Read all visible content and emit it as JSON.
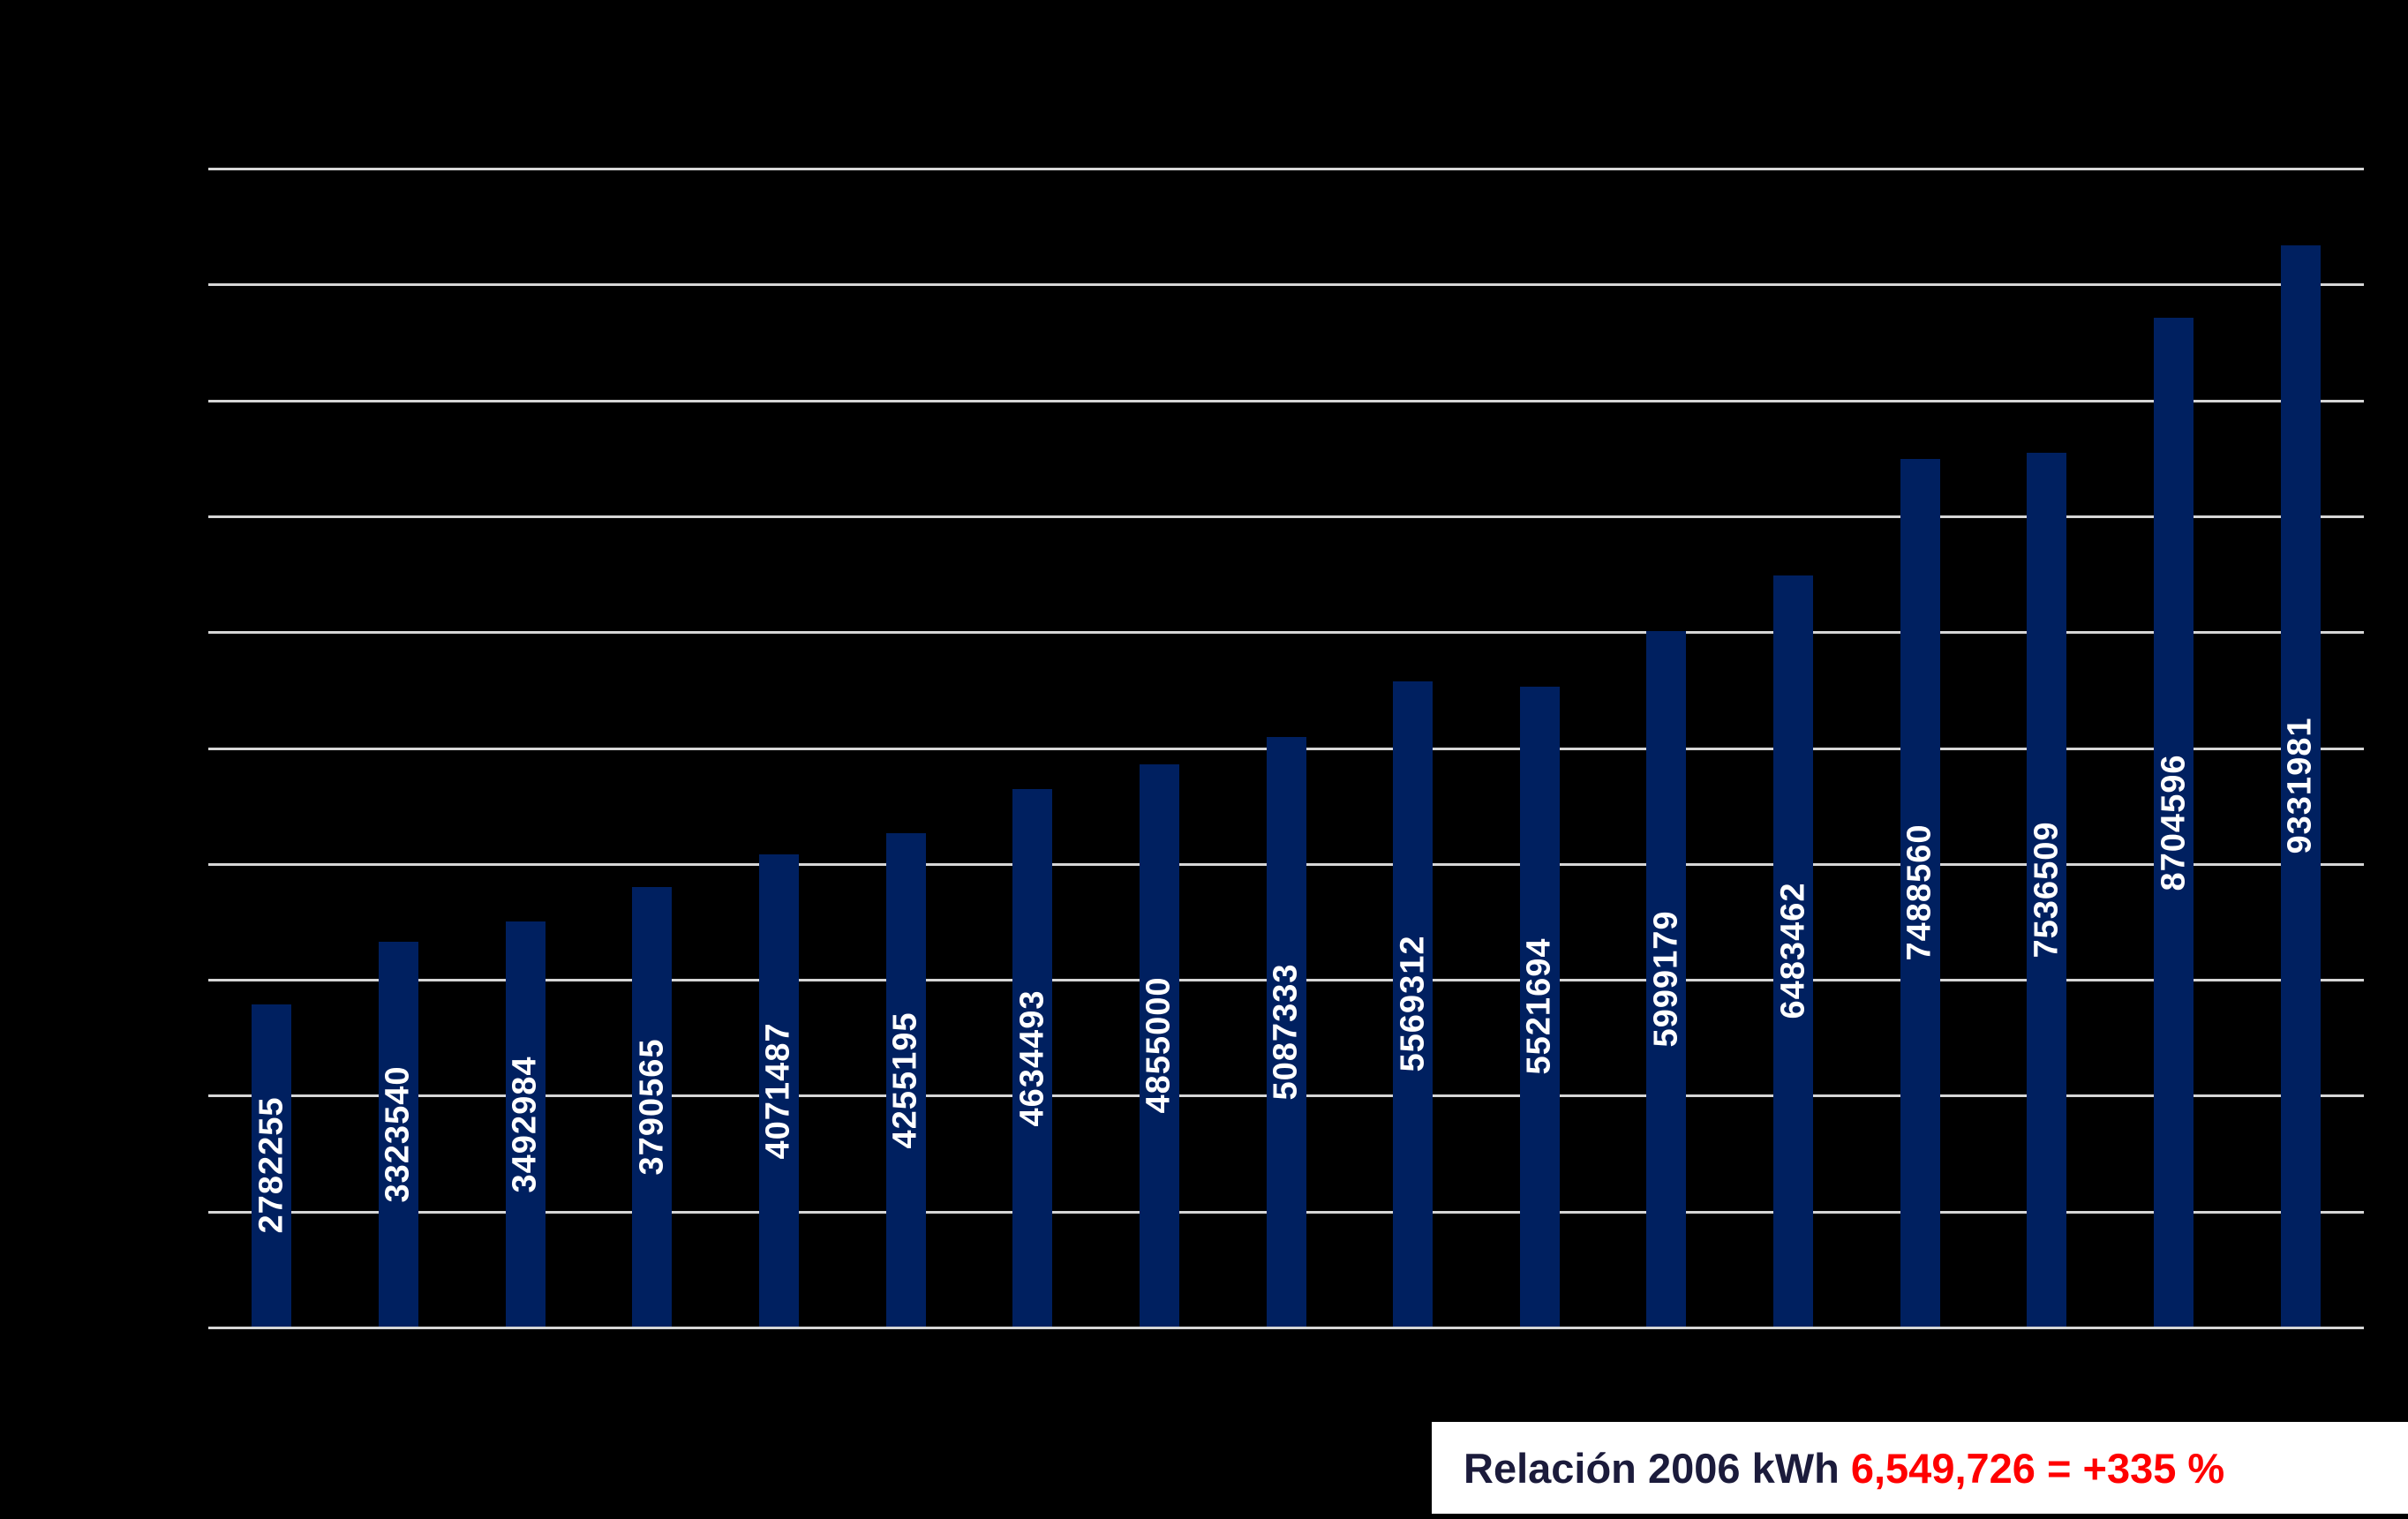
{
  "chart_data": {
    "type": "bar",
    "values": [
      2782255,
      3323540,
      3492984,
      3790565,
      4071487,
      4255195,
      4634493,
      4855000,
      5087333,
      5569312,
      5521694,
      5999179,
      6483462,
      7488560,
      7536509,
      8704596,
      9331981
    ],
    "bar_labels": [
      "2782255",
      "3323540",
      "3492984",
      "3790565",
      "4071487",
      "4255195",
      "4634493",
      "4855000",
      "5087333",
      "5569312",
      "5521694",
      "5999179",
      "6483462",
      "7488560",
      "7536509",
      "8704596",
      "9331981"
    ],
    "ylim": [
      0,
      10000000
    ],
    "y_major_unit": 1000000,
    "grid": true,
    "gridline_count": 11,
    "legend_position": "none",
    "axis_tick_labels_visible": false,
    "bar_label_position": "center-rotated-90"
  },
  "annotation": {
    "prefix": "Relación 2006 kWh ",
    "highlight": "6,549,726 = +335 %"
  },
  "colors": {
    "background": "#000000",
    "bar": "#002060",
    "gridline": "#D6D6D6",
    "bar_label": "#FFFFFF",
    "annotation_bg": "#FFFFFF",
    "annotation_text": "#1B1B3B",
    "annotation_highlight": "#FF0000"
  }
}
